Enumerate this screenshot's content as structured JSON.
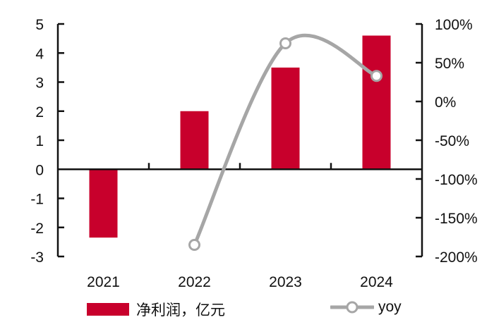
{
  "chart_data": {
    "type": "bar+line",
    "title": "",
    "categories": [
      "2021",
      "2022",
      "2023",
      "2024"
    ],
    "series": [
      {
        "name": "净利润，亿元",
        "type": "bar",
        "axis": "left",
        "color": "#c8002c",
        "values": [
          -2.35,
          2.0,
          3.5,
          4.6
        ]
      },
      {
        "name": "yoy",
        "type": "line",
        "axis": "right",
        "color": "#a6a6a6",
        "marker": "hollow-circle",
        "smooth": true,
        "values": [
          null,
          -185,
          75,
          33
        ]
      }
    ],
    "left_axis": {
      "ylim": [
        -3,
        5
      ],
      "ticks": [
        5,
        4,
        3,
        2,
        1,
        0,
        -1,
        -2,
        -3
      ],
      "tick_labels": [
        "5",
        "4",
        "3",
        "2",
        "1",
        "0",
        "-1",
        "-2",
        "-3"
      ]
    },
    "right_axis": {
      "ylim": [
        -200,
        100
      ],
      "ticks": [
        100,
        50,
        0,
        -50,
        -100,
        -150,
        -200
      ],
      "tick_labels": [
        "100%",
        "50%",
        "0%",
        "-50%",
        "-100%",
        "-150%",
        "-200%"
      ]
    },
    "xlabel": "",
    "ylabel": "",
    "grid": false,
    "legend_position": "bottom"
  },
  "legend": {
    "bar_label": "净利润，亿元",
    "line_label": "yoy"
  }
}
